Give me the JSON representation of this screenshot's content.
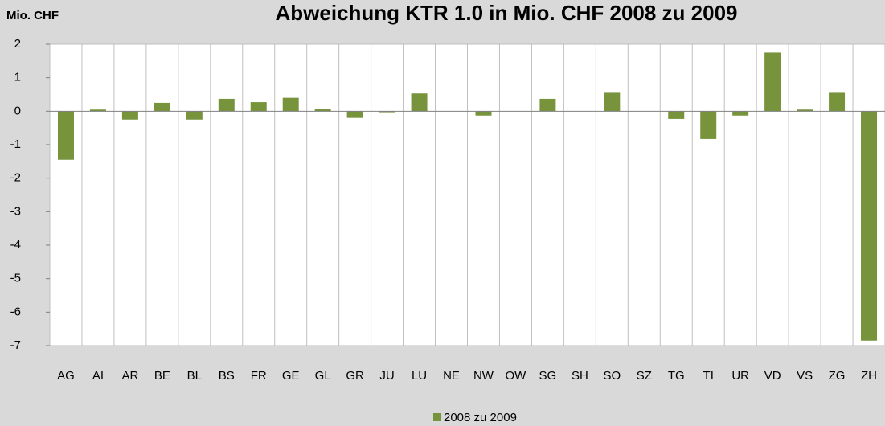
{
  "chart_data": {
    "type": "bar",
    "title": "Abweichung KTR 1.0 in Mio. CHF 2008 zu 2009",
    "y_label": "Mio. CHF",
    "categories": [
      "AG",
      "AI",
      "AR",
      "BE",
      "BL",
      "BS",
      "FR",
      "GE",
      "GL",
      "GR",
      "JU",
      "LU",
      "NE",
      "NW",
      "OW",
      "SG",
      "SH",
      "SO",
      "SZ",
      "TG",
      "TI",
      "UR",
      "VD",
      "VS",
      "ZG",
      "ZH"
    ],
    "series": [
      {
        "name": "2008 zu 2009",
        "color": "#77933c",
        "values": [
          -1.45,
          0.05,
          -0.25,
          0.25,
          -0.25,
          0.37,
          0.27,
          0.4,
          0.06,
          -0.2,
          -0.03,
          0.53,
          0,
          -0.13,
          0,
          0.37,
          0,
          0.55,
          0,
          -0.23,
          -0.83,
          -0.13,
          1.75,
          0.05,
          0.55,
          -6.85
        ]
      }
    ],
    "ylim": [
      -7,
      2
    ],
    "yticks": [
      -7,
      -6,
      -5,
      -4,
      -3,
      -2,
      -1,
      0,
      1,
      2
    ],
    "legend": "bottom"
  }
}
